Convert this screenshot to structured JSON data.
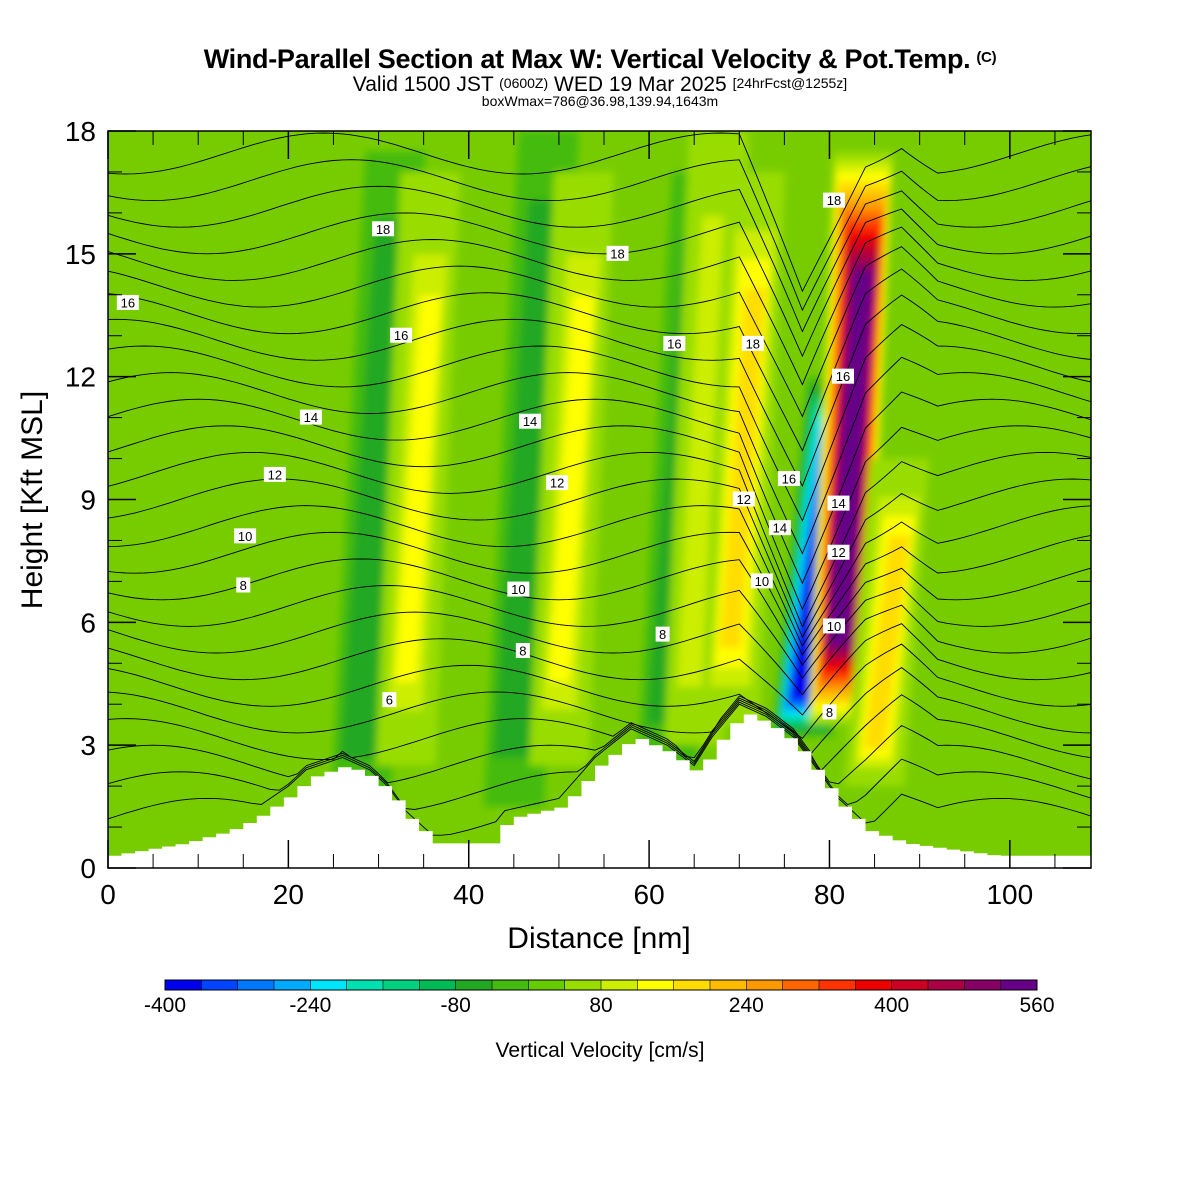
{
  "title": "Wind-Parallel Section at Max W: Vertical Velocity & Pot.Temp.",
  "title_mark": "(C)",
  "subtitle": {
    "part1": "Valid 1500 JST",
    "part2": "(0600Z)",
    "part3": "WED 19 Mar 2025",
    "part4": "[24hrFcst@1255z]"
  },
  "subtitle2": "boxWmax=786@36.98,139.94,1643m",
  "chart_data": {
    "type": "heatmap",
    "xlabel": "Distance [nm]",
    "ylabel": "Height [Kft MSL]",
    "xlim": [
      0,
      109
    ],
    "ylim": [
      0,
      18
    ],
    "xticks": [
      0,
      20,
      40,
      60,
      80,
      100
    ],
    "yticks": [
      0,
      3,
      6,
      9,
      12,
      15,
      18
    ],
    "colorbar": {
      "label": "Vertical Velocity [cm/s]",
      "levels": [
        -400,
        -360,
        -320,
        -280,
        -240,
        -200,
        -160,
        -120,
        -80,
        -40,
        0,
        40,
        80,
        120,
        160,
        200,
        240,
        280,
        320,
        360,
        400,
        440,
        480,
        520,
        560
      ],
      "tick_labels": [
        "-400",
        "-240",
        "-80",
        "80",
        "240",
        "400",
        "560"
      ],
      "colors": [
        "#0000ee",
        "#0044ff",
        "#0077ff",
        "#00aaff",
        "#00e5ff",
        "#00e0b0",
        "#00d080",
        "#00bb55",
        "#22a822",
        "#44bb11",
        "#66cc00",
        "#99dd00",
        "#ccee00",
        "#ffff00",
        "#ffdd00",
        "#ffbb00",
        "#ff9900",
        "#ff6600",
        "#ff3300",
        "#ee0000",
        "#cc0022",
        "#aa0044",
        "#880066",
        "#660088"
      ]
    },
    "vertical_velocity_features": [
      {
        "x": 28,
        "y_bottom": 1.5,
        "y_top": 17.5,
        "w": -60
      },
      {
        "x": 33,
        "y_bottom": 2.5,
        "y_top": 17,
        "w": 120
      },
      {
        "x": 45,
        "y_bottom": 1.5,
        "y_top": 18,
        "w": -80
      },
      {
        "x": 50,
        "y_bottom": 2.5,
        "y_top": 17,
        "w": 120
      },
      {
        "x": 62,
        "y_bottom": 2.5,
        "y_top": 17,
        "w": -60
      },
      {
        "x": 65,
        "y_bottom": 3,
        "y_top": 18,
        "w": 100
      },
      {
        "x": 69,
        "y_bottom": 3.5,
        "y_top": 17,
        "w": 160
      },
      {
        "x": 77,
        "y_bottom": 3.2,
        "y_top": 12,
        "w": -400
      },
      {
        "x": 81,
        "y_bottom": 3.5,
        "y_top": 17.5,
        "w": 560
      },
      {
        "x": 85,
        "y_bottom": 2,
        "y_top": 10,
        "w": 160
      }
    ],
    "terrain_height_kft": [
      {
        "x": 0,
        "h": 0.3
      },
      {
        "x": 8,
        "h": 0.6
      },
      {
        "x": 13,
        "h": 0.9
      },
      {
        "x": 16,
        "h": 1.2
      },
      {
        "x": 20,
        "h": 1.8
      },
      {
        "x": 22,
        "h": 2.2
      },
      {
        "x": 26,
        "h": 2.5
      },
      {
        "x": 29,
        "h": 2.2
      },
      {
        "x": 31,
        "h": 1.8
      },
      {
        "x": 33,
        "h": 1.2
      },
      {
        "x": 36,
        "h": 0.6
      },
      {
        "x": 42,
        "h": 0.6
      },
      {
        "x": 44,
        "h": 1.2
      },
      {
        "x": 50,
        "h": 1.5
      },
      {
        "x": 54,
        "h": 2.5
      },
      {
        "x": 58,
        "h": 3.2
      },
      {
        "x": 62,
        "h": 2.8
      },
      {
        "x": 65,
        "h": 2.3
      },
      {
        "x": 67,
        "h": 3.0
      },
      {
        "x": 70,
        "h": 3.8
      },
      {
        "x": 73,
        "h": 3.5
      },
      {
        "x": 76,
        "h": 3.0
      },
      {
        "x": 78,
        "h": 2.4
      },
      {
        "x": 81,
        "h": 1.5
      },
      {
        "x": 84,
        "h": 0.9
      },
      {
        "x": 88,
        "h": 0.6
      },
      {
        "x": 98,
        "h": 0.3
      },
      {
        "x": 109,
        "h": 0.3
      }
    ],
    "contour_labels": [
      {
        "text": "16",
        "x": 2.2,
        "y": 13.8
      },
      {
        "text": "18",
        "x": 30.5,
        "y": 15.6
      },
      {
        "text": "16",
        "x": 32.5,
        "y": 13.0
      },
      {
        "text": "14",
        "x": 22.5,
        "y": 11.0
      },
      {
        "text": "12",
        "x": 18.5,
        "y": 9.6
      },
      {
        "text": "10",
        "x": 15.2,
        "y": 8.1
      },
      {
        "text": "8",
        "x": 15.0,
        "y": 6.9
      },
      {
        "text": "6",
        "x": 31.2,
        "y": 4.1
      },
      {
        "text": "18",
        "x": 56.5,
        "y": 15.0
      },
      {
        "text": "16",
        "x": 62.8,
        "y": 12.8
      },
      {
        "text": "14",
        "x": 46.8,
        "y": 10.9
      },
      {
        "text": "12",
        "x": 49.8,
        "y": 9.4
      },
      {
        "text": "10",
        "x": 45.5,
        "y": 6.8
      },
      {
        "text": "8",
        "x": 46.0,
        "y": 5.3
      },
      {
        "text": "8",
        "x": 61.5,
        "y": 5.7
      },
      {
        "text": "18",
        "x": 71.5,
        "y": 12.8
      },
      {
        "text": "16",
        "x": 75.5,
        "y": 9.5
      },
      {
        "text": "14",
        "x": 74.5,
        "y": 8.3
      },
      {
        "text": "12",
        "x": 70.5,
        "y": 9.0
      },
      {
        "text": "10",
        "x": 72.5,
        "y": 7.0
      },
      {
        "text": "18",
        "x": 80.5,
        "y": 16.3
      },
      {
        "text": "16",
        "x": 81.5,
        "y": 12.0
      },
      {
        "text": "14",
        "x": 81.0,
        "y": 8.9
      },
      {
        "text": "12",
        "x": 81.0,
        "y": 7.7
      },
      {
        "text": "10",
        "x": 80.5,
        "y": 5.9
      },
      {
        "text": "8",
        "x": 80.0,
        "y": 3.8
      }
    ]
  }
}
